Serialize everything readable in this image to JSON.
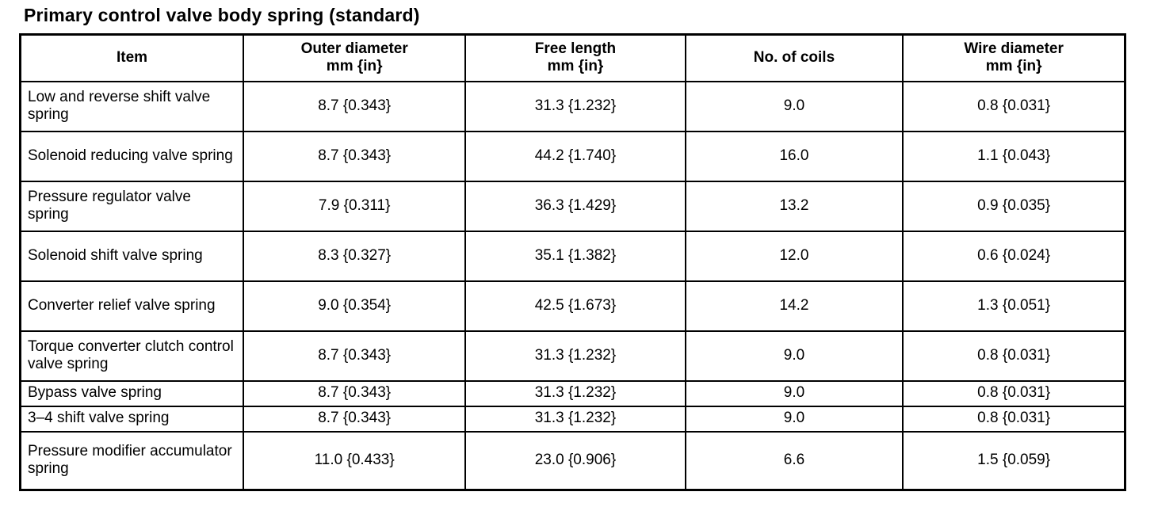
{
  "title": "Primary control valve body spring (standard)",
  "table": {
    "headers": [
      {
        "line1": "Item",
        "line2": ""
      },
      {
        "line1": "Outer diameter",
        "line2": "mm {in}"
      },
      {
        "line1": "Free length",
        "line2": "mm {in}"
      },
      {
        "line1": "No. of coils",
        "line2": ""
      },
      {
        "line1": "Wire diameter",
        "line2": "mm {in}"
      }
    ],
    "rows": [
      {
        "item": "Low and reverse shift valve spring",
        "outer_diameter": "8.7 {0.343}",
        "free_length": "31.3 {1.232}",
        "no_of_coils": "9.0",
        "wire_diameter": "0.8 {0.031}"
      },
      {
        "item": "Solenoid reducing valve spring",
        "outer_diameter": "8.7 {0.343}",
        "free_length": "44.2 {1.740}",
        "no_of_coils": "16.0",
        "wire_diameter": "1.1 {0.043}"
      },
      {
        "item": "Pressure regulator valve spring",
        "outer_diameter": "7.9 {0.311}",
        "free_length": "36.3 {1.429}",
        "no_of_coils": "13.2",
        "wire_diameter": "0.9 {0.035}"
      },
      {
        "item": "Solenoid shift valve spring",
        "outer_diameter": "8.3 {0.327}",
        "free_length": "35.1 {1.382}",
        "no_of_coils": "12.0",
        "wire_diameter": "0.6 {0.024}"
      },
      {
        "item": "Converter relief valve spring",
        "outer_diameter": "9.0 {0.354}",
        "free_length": "42.5 {1.673}",
        "no_of_coils": "14.2",
        "wire_diameter": "1.3 {0.051}"
      },
      {
        "item": "Torque converter clutch control valve spring",
        "outer_diameter": "8.7 {0.343}",
        "free_length": "31.3 {1.232}",
        "no_of_coils": "9.0",
        "wire_diameter": "0.8 {0.031}"
      },
      {
        "item": "Bypass valve spring",
        "outer_diameter": "8.7 {0.343}",
        "free_length": "31.3 {1.232}",
        "no_of_coils": "9.0",
        "wire_diameter": "0.8 {0.031}"
      },
      {
        "item": "3–4 shift valve spring",
        "outer_diameter": "8.7 {0.343}",
        "free_length": "31.3 {1.232}",
        "no_of_coils": "9.0",
        "wire_diameter": "0.8 {0.031}"
      },
      {
        "item": "Pressure modifier accumulator spring",
        "outer_diameter": "11.0 {0.433}",
        "free_length": "23.0 {0.906}",
        "no_of_coils": "6.6",
        "wire_diameter": "1.5 {0.059}"
      }
    ]
  }
}
